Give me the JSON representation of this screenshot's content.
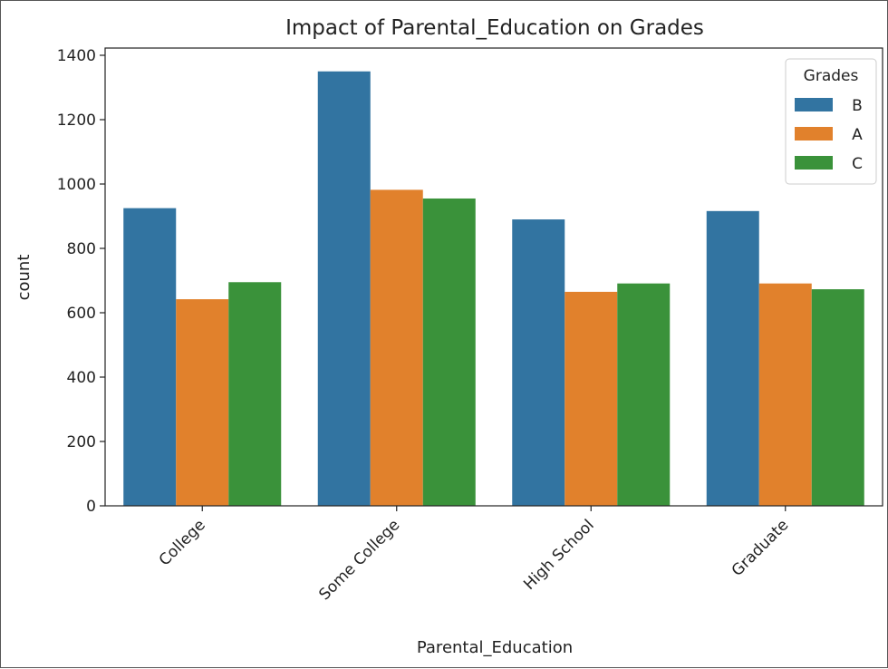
{
  "chart_data": {
    "type": "bar",
    "title": "Impact of Parental_Education on Grades",
    "xlabel": "Parental_Education",
    "ylabel": "count",
    "categories": [
      "College",
      "Some College",
      "High School",
      "Graduate"
    ],
    "series": [
      {
        "name": "B",
        "color": "#3274a1",
        "values": [
          925,
          1350,
          890,
          916
        ]
      },
      {
        "name": "A",
        "color": "#e1812c",
        "values": [
          642,
          982,
          665,
          691
        ]
      },
      {
        "name": "C",
        "color": "#3a923a",
        "values": [
          695,
          955,
          691,
          673
        ]
      }
    ],
    "ylim": [
      0,
      1400
    ],
    "yticks": [
      0,
      200,
      400,
      600,
      800,
      1000,
      1200,
      1400
    ],
    "legend": {
      "title": "Grades",
      "position": "top-right"
    },
    "grid": false
  }
}
